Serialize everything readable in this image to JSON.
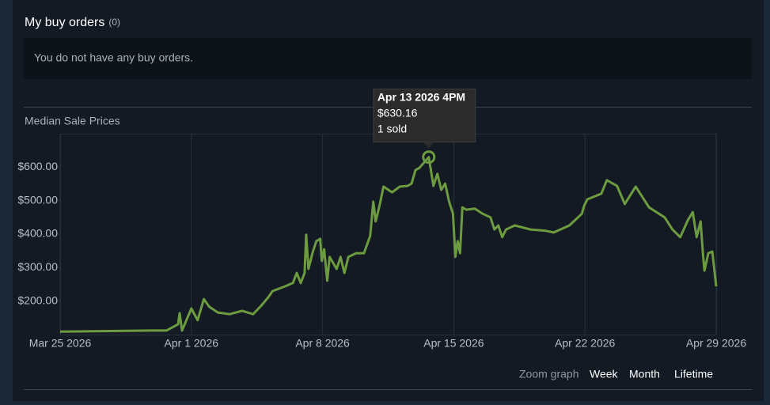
{
  "header": {
    "title": "My buy orders",
    "count": "(0)",
    "message": "You do not have any buy orders."
  },
  "chart_data": {
    "type": "line",
    "title": "Median Sale Prices",
    "x": [
      "2026-03-25T00:00",
      "2026-03-29T19:00",
      "2026-03-30T16:00",
      "2026-03-31T07:00",
      "2026-03-31T09:00",
      "2026-03-31T12:00",
      "2026-04-01T00:00",
      "2026-04-01T08:00",
      "2026-04-01T16:00",
      "2026-04-01T23:00",
      "2026-04-02T10:00",
      "2026-04-03T01:00",
      "2026-04-03T17:00",
      "2026-04-04T07:00",
      "2026-04-04T17:00",
      "2026-04-05T03:00",
      "2026-04-05T08:00",
      "2026-04-06T00:00",
      "2026-04-06T10:00",
      "2026-04-06T15:00",
      "2026-04-06T20:00",
      "2026-04-07T01:00",
      "2026-04-07T03:00",
      "2026-04-07T06:00",
      "2026-04-07T11:00",
      "2026-04-07T16:00",
      "2026-04-07T21:00",
      "2026-04-07T23:00",
      "2026-04-08T02:00",
      "2026-04-08T06:00",
      "2026-04-08T09:00",
      "2026-04-08T18:00",
      "2026-04-08T23:00",
      "2026-04-09T04:00",
      "2026-04-09T09:00",
      "2026-04-09T19:00",
      "2026-04-10T05:00",
      "2026-04-10T13:00",
      "2026-04-10T17:00",
      "2026-04-10T20:00",
      "2026-04-11T01:00",
      "2026-04-11T06:00",
      "2026-04-11T17:00",
      "2026-04-12T03:00",
      "2026-04-12T13:00",
      "2026-04-12T18:00",
      "2026-04-12T23:00",
      "2026-04-13T04:00",
      "2026-04-13T16:00",
      "2026-04-13T22:00",
      "2026-04-14T03:00",
      "2026-04-14T08:00",
      "2026-04-14T13:00",
      "2026-04-14T18:00",
      "2026-04-14T23:00",
      "2026-04-15T02:00",
      "2026-04-15T05:00",
      "2026-04-15T08:00",
      "2026-04-15T11:00",
      "2026-04-15T16:00",
      "2026-04-16T03:00",
      "2026-04-16T13:00",
      "2026-04-16T23:00",
      "2026-04-17T04:00",
      "2026-04-17T09:00",
      "2026-04-17T14:00",
      "2026-04-17T19:00",
      "2026-04-18T06:00",
      "2026-04-19T02:00",
      "2026-04-19T22:00",
      "2026-04-20T08:00",
      "2026-04-21T04:00",
      "2026-04-21T20:00",
      "2026-04-21T23:00",
      "2026-04-22T03:00",
      "2026-04-22T21:00",
      "2026-04-23T04:00",
      "2026-04-23T17:00",
      "2026-04-24T03:00",
      "2026-04-24T17:00",
      "2026-04-25T10:00",
      "2026-04-26T06:00",
      "2026-04-26T16:00",
      "2026-04-27T02:00",
      "2026-04-27T12:00",
      "2026-04-27T18:00",
      "2026-04-27T23:00",
      "2026-04-28T04:00",
      "2026-04-28T07:00",
      "2026-04-28T09:00",
      "2026-04-28T14:00",
      "2026-04-28T19:00",
      "2026-04-29T00:00"
    ],
    "series": [
      {
        "color": "#6d9b3f",
        "values": [
          109,
          112,
          112,
          131,
          164,
          112,
          178,
          143,
          206,
          183,
          166,
          161,
          171,
          161,
          185,
          213,
          230,
          244,
          254,
          284,
          254,
          284,
          398,
          296,
          343,
          379,
          386,
          320,
          355,
          261,
          332,
          296,
          332,
          284,
          332,
          343,
          343,
          395,
          497,
          438,
          485,
          542,
          525,
          542,
          544,
          551,
          591,
          598,
          630.16,
          544,
          580,
          532,
          551,
          497,
          461,
          332,
          379,
          343,
          480,
          473,
          476,
          461,
          450,
          414,
          426,
          391,
          414,
          426,
          414,
          410,
          405,
          426,
          461,
          485,
          504,
          521,
          561,
          544,
          490,
          542,
          480,
          450,
          414,
          391,
          443,
          466,
          391,
          438,
          343,
          291,
          343,
          348,
          244
        ]
      }
    ],
    "xlim": [
      "2026-03-25T00:00",
      "2026-04-29T00:00"
    ],
    "xticks": [
      {
        "value": "2026-03-25T00:00",
        "label": "Mar 25 2026"
      },
      {
        "value": "2026-04-01T00:00",
        "label": "Apr 1 2026"
      },
      {
        "value": "2026-04-08T00:00",
        "label": "Apr 8 2026"
      },
      {
        "value": "2026-04-15T00:00",
        "label": "Apr 15 2026"
      },
      {
        "value": "2026-04-22T00:00",
        "label": "Apr 22 2026"
      },
      {
        "value": "2026-04-29T00:00",
        "label": "Apr 29 2026"
      }
    ],
    "ylim": [
      100,
      700
    ],
    "yticks": [
      {
        "value": 200,
        "label": "$200.00"
      },
      {
        "value": 300,
        "label": "$300.00"
      },
      {
        "value": 400,
        "label": "$400.00"
      },
      {
        "value": 500,
        "label": "$500.00"
      },
      {
        "value": 600,
        "label": "$600.00"
      }
    ],
    "grid": "x",
    "tooltip": {
      "index": 48,
      "date": "Apr 13 2026 4PM",
      "price": "$630.16",
      "sold": "1 sold"
    }
  },
  "zoom": {
    "label": "Zoom graph",
    "options": [
      "Week",
      "Month",
      "Lifetime"
    ]
  }
}
